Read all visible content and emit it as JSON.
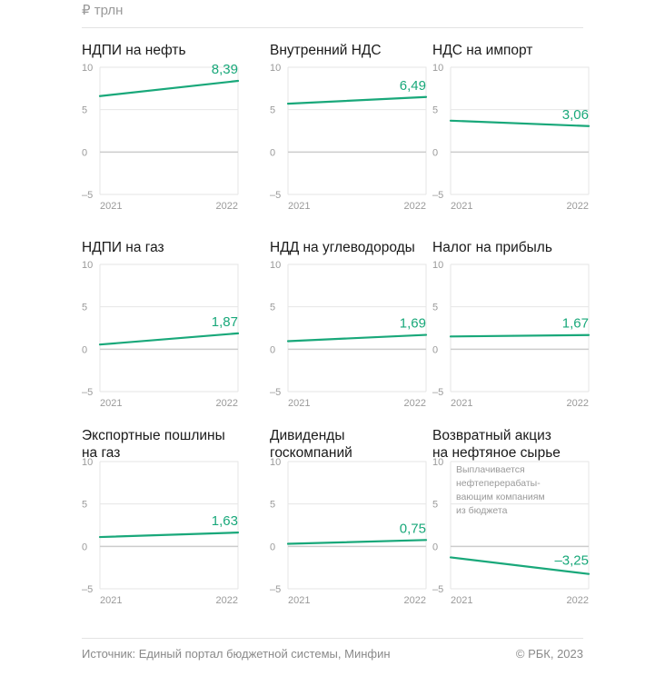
{
  "unit": "₽ трлн",
  "source": "Источник: Единый портал бюджетной системы, Минфин",
  "copyright": "© РБК, 2023",
  "colors": {
    "line": "#19a87a",
    "grid": "#e6e6e6",
    "zero": "#cccccc",
    "text": "#1a1a1a",
    "muted": "#9a9a9a"
  },
  "chart_data": [
    {
      "type": "line",
      "title_lines": [
        "НДПИ на нефть"
      ],
      "x": [
        "2021",
        "2022"
      ],
      "values": [
        6.6,
        8.39
      ],
      "value_label": "8,39",
      "ylim": [
        -5,
        10
      ],
      "yticks": [
        "10",
        "5",
        "0",
        "–5"
      ]
    },
    {
      "type": "line",
      "title_lines": [
        "Внутренний НДС"
      ],
      "x": [
        "2021",
        "2022"
      ],
      "values": [
        5.7,
        6.49
      ],
      "value_label": "6,49",
      "ylim": [
        -5,
        10
      ],
      "yticks": [
        "10",
        "5",
        "0",
        "–5"
      ]
    },
    {
      "type": "line",
      "title_lines": [
        "НДС на импорт"
      ],
      "x": [
        "2021",
        "2022"
      ],
      "values": [
        3.7,
        3.06
      ],
      "value_label": "3,06",
      "ylim": [
        -5,
        10
      ],
      "yticks": [
        "10",
        "5",
        "0",
        "–5"
      ]
    },
    {
      "type": "line",
      "title_lines": [
        "НДПИ на газ"
      ],
      "x": [
        "2021",
        "2022"
      ],
      "values": [
        0.55,
        1.87
      ],
      "value_label": "1,87",
      "ylim": [
        -5,
        10
      ],
      "yticks": [
        "10",
        "5",
        "0",
        "–5"
      ]
    },
    {
      "type": "line",
      "title_lines": [
        "НДД на углеводороды"
      ],
      "x": [
        "2021",
        "2022"
      ],
      "values": [
        0.95,
        1.69
      ],
      "value_label": "1,69",
      "ylim": [
        -5,
        10
      ],
      "yticks": [
        "10",
        "5",
        "0",
        "–5"
      ]
    },
    {
      "type": "line",
      "title_lines": [
        "Налог на прибыль"
      ],
      "x": [
        "2021",
        "2022"
      ],
      "values": [
        1.5,
        1.67
      ],
      "value_label": "1,67",
      "ylim": [
        -5,
        10
      ],
      "yticks": [
        "10",
        "5",
        "0",
        "–5"
      ]
    },
    {
      "type": "line",
      "title_lines": [
        "Экспортные пошлины",
        "на газ"
      ],
      "x": [
        "2021",
        "2022"
      ],
      "values": [
        1.1,
        1.63
      ],
      "value_label": "1,63",
      "ylim": [
        -5,
        10
      ],
      "yticks": [
        "10",
        "5",
        "0",
        "–5"
      ]
    },
    {
      "type": "line",
      "title_lines": [
        "Дивиденды",
        "госкомпаний"
      ],
      "x": [
        "2021",
        "2022"
      ],
      "values": [
        0.3,
        0.75
      ],
      "value_label": "0,75",
      "ylim": [
        -5,
        10
      ],
      "yticks": [
        "10",
        "5",
        "0",
        "–5"
      ]
    },
    {
      "type": "line",
      "title_lines": [
        "Возвратный акциз",
        "на нефтяное сырье"
      ],
      "x": [
        "2021",
        "2022"
      ],
      "values": [
        -1.3,
        -3.25
      ],
      "value_label": "–3,25",
      "ylim": [
        -5,
        10
      ],
      "yticks": [
        "10",
        "5",
        "0",
        "–5"
      ],
      "note_lines": [
        "Выплачивается",
        "нефтеперерабаты-",
        "вающим компаниям",
        "из бюджета"
      ]
    }
  ]
}
